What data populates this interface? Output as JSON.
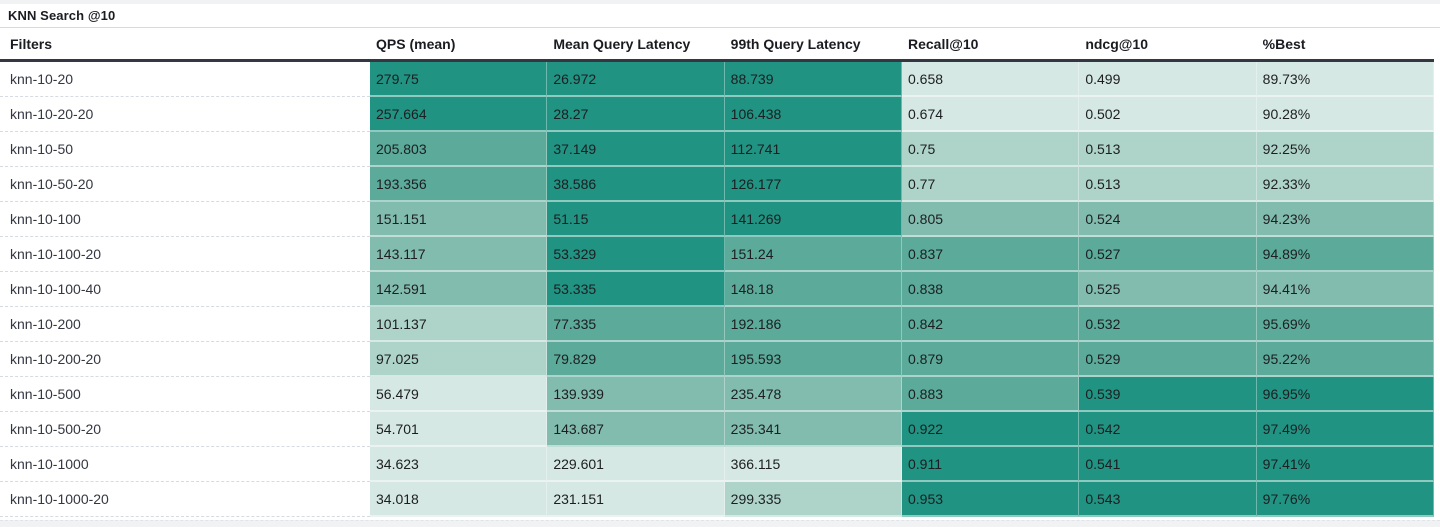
{
  "title": "KNN Search @10",
  "table": {
    "filters_header": "Filters",
    "columns": [
      {
        "label": "QPS (mean)",
        "lower_is_better": false
      },
      {
        "label": "Mean Query Latency",
        "lower_is_better": true
      },
      {
        "label": "99th Query Latency",
        "lower_is_better": true
      },
      {
        "label": "Recall@10",
        "lower_is_better": false
      },
      {
        "label": "ndcg@10",
        "lower_is_better": false
      },
      {
        "label": "%Best",
        "lower_is_better": false
      }
    ],
    "rows": [
      {
        "filter": "knn-10-20",
        "values": [
          "279.75",
          "26.972",
          "88.739",
          "0.658",
          "0.499",
          "89.73%"
        ]
      },
      {
        "filter": "knn-10-20-20",
        "values": [
          "257.664",
          "28.27",
          "106.438",
          "0.674",
          "0.502",
          "90.28%"
        ]
      },
      {
        "filter": "knn-10-50",
        "values": [
          "205.803",
          "37.149",
          "112.741",
          "0.75",
          "0.513",
          "92.25%"
        ]
      },
      {
        "filter": "knn-10-50-20",
        "values": [
          "193.356",
          "38.586",
          "126.177",
          "0.77",
          "0.513",
          "92.33%"
        ]
      },
      {
        "filter": "knn-10-100",
        "values": [
          "151.151",
          "51.15",
          "141.269",
          "0.805",
          "0.524",
          "94.23%"
        ]
      },
      {
        "filter": "knn-10-100-20",
        "values": [
          "143.117",
          "53.329",
          "151.24",
          "0.837",
          "0.527",
          "94.89%"
        ]
      },
      {
        "filter": "knn-10-100-40",
        "values": [
          "142.591",
          "53.335",
          "148.18",
          "0.838",
          "0.525",
          "94.41%"
        ]
      },
      {
        "filter": "knn-10-200",
        "values": [
          "101.137",
          "77.335",
          "192.186",
          "0.842",
          "0.532",
          "95.69%"
        ]
      },
      {
        "filter": "knn-10-200-20",
        "values": [
          "97.025",
          "79.829",
          "195.593",
          "0.879",
          "0.529",
          "95.22%"
        ]
      },
      {
        "filter": "knn-10-500",
        "values": [
          "56.479",
          "139.939",
          "235.478",
          "0.883",
          "0.539",
          "96.95%"
        ]
      },
      {
        "filter": "knn-10-500-20",
        "values": [
          "54.701",
          "143.687",
          "235.341",
          "0.922",
          "0.542",
          "97.49%"
        ]
      },
      {
        "filter": "knn-10-1000",
        "values": [
          "34.623",
          "229.601",
          "366.115",
          "0.911",
          "0.541",
          "97.41%"
        ]
      },
      {
        "filter": "knn-10-1000-20",
        "values": [
          "34.018",
          "231.151",
          "299.335",
          "0.953",
          "0.543",
          "97.76%"
        ]
      }
    ]
  },
  "chart_data": {
    "type": "table",
    "title": "KNN Search @10",
    "row_header": "Filters",
    "columns": [
      "QPS (mean)",
      "Mean Query Latency",
      "99th Query Latency",
      "Recall@10",
      "ndcg@10",
      "%Best"
    ],
    "rows": [
      "knn-10-20",
      "knn-10-20-20",
      "knn-10-50",
      "knn-10-50-20",
      "knn-10-100",
      "knn-10-100-20",
      "knn-10-100-40",
      "knn-10-200",
      "knn-10-200-20",
      "knn-10-500",
      "knn-10-500-20",
      "knn-10-1000",
      "knn-10-1000-20"
    ],
    "values": [
      [
        279.75,
        26.972,
        88.739,
        0.658,
        0.499,
        89.73
      ],
      [
        257.664,
        28.27,
        106.438,
        0.674,
        0.502,
        90.28
      ],
      [
        205.803,
        37.149,
        112.741,
        0.75,
        0.513,
        92.25
      ],
      [
        193.356,
        38.586,
        126.177,
        0.77,
        0.513,
        92.33
      ],
      [
        151.151,
        51.15,
        141.269,
        0.805,
        0.524,
        94.23
      ],
      [
        143.117,
        53.329,
        151.24,
        0.837,
        0.527,
        94.89
      ],
      [
        142.591,
        53.335,
        148.18,
        0.838,
        0.525,
        94.41
      ],
      [
        101.137,
        77.335,
        192.186,
        0.842,
        0.532,
        95.69
      ],
      [
        97.025,
        79.829,
        195.593,
        0.879,
        0.529,
        95.22
      ],
      [
        56.479,
        139.939,
        235.478,
        0.883,
        0.539,
        96.95
      ],
      [
        54.701,
        143.687,
        235.341,
        0.922,
        0.542,
        97.49
      ],
      [
        34.623,
        229.601,
        366.115,
        0.911,
        0.541,
        97.41
      ],
      [
        34.018,
        231.151,
        299.335,
        0.953,
        0.543,
        97.76
      ]
    ],
    "heatmap_note": "cell shading: per-column min-max normalization, 5 discrete bins, darker teal = better; latency columns inverted (lower = darker)"
  },
  "colors": {
    "heatmap_palette_light_to_dark": [
      "#d6e8e3",
      "#aed4c9",
      "#82bcae",
      "#5baa9a",
      "#219382"
    ],
    "header_border": "#343741",
    "title_divider": "#d3dae6",
    "row_separator": "#d6dbe2",
    "edge_strip": "#f0f2f4",
    "text": "#1c1e21"
  }
}
